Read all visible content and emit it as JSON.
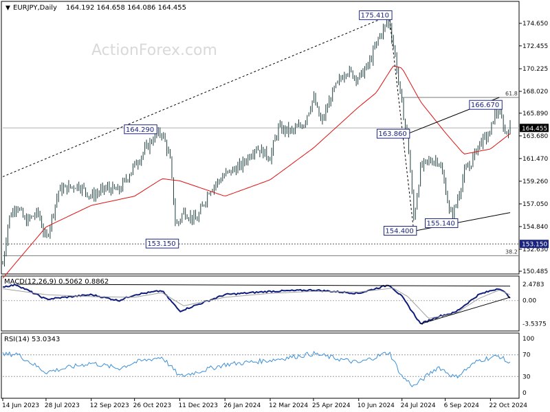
{
  "header": {
    "symbol_timeframe": "EURJPY,Daily",
    "ohlc": "164.192 164.658 164.086 164.455"
  },
  "watermark": "ActionForex.com",
  "colors": {
    "candles": "#1c3c3c",
    "sma": "#e01010",
    "macd": "#0d1c7a",
    "signal": "#a0a0a0",
    "rsi": "#3a8fd8",
    "annotation_text": "#1a237e",
    "current_price_tag": "#000000"
  },
  "chart_data": [
    {
      "type": "candlestick",
      "name": "price",
      "title": "EURJPY,Daily",
      "ylim": [
        150.485,
        176.5
      ],
      "y_ticks": [
        "174.650",
        "172.455",
        "170.225",
        "168.020",
        "165.890",
        "163.680",
        "161.470",
        "159.260",
        "157.050",
        "154.840",
        "152.630",
        "150.485"
      ],
      "x_ticks": [
        "14 Jun 2023",
        "28 Jul 2023",
        "12 Sep 2023",
        "26 Oct 2023",
        "11 Dec 2023",
        "26 Jan 2024",
        "12 Mar 2024",
        "25 Apr 2024",
        "10 Jun 2024",
        "24 Jul 2024",
        "6 Sep 2024",
        "22 Oct 2024"
      ],
      "overlay": "moving average",
      "close_path": [
        {
          "d": "14 Jun 2023",
          "v": 151.2
        },
        {
          "d": "20 Jun 2023",
          "v": 155.6
        },
        {
          "d": "28 Jun 2023",
          "v": 157.0
        },
        {
          "d": "7 Jul 2023",
          "v": 155.3
        },
        {
          "d": "20 Jul 2023",
          "v": 156.2
        },
        {
          "d": "28 Jul 2023",
          "v": 153.5
        },
        {
          "d": "10 Aug 2023",
          "v": 158.4
        },
        {
          "d": "30 Aug 2023",
          "v": 158.9
        },
        {
          "d": "12 Sep 2023",
          "v": 157.8
        },
        {
          "d": "28 Sep 2023",
          "v": 158.6
        },
        {
          "d": "10 Oct 2023",
          "v": 158.3
        },
        {
          "d": "26 Oct 2023",
          "v": 160.8
        },
        {
          "d": "15 Nov 2023",
          "v": 163.6
        },
        {
          "d": "23 Nov 2023",
          "v": 164.0
        },
        {
          "d": "1 Dec 2023",
          "v": 161.5
        },
        {
          "d": "7 Dec 2023",
          "v": 154.8
        },
        {
          "d": "15 Dec 2023",
          "v": 156.3
        },
        {
          "d": "28 Dec 2023",
          "v": 155.4
        },
        {
          "d": "10 Jan 2024",
          "v": 158.4
        },
        {
          "d": "26 Jan 2024",
          "v": 159.9
        },
        {
          "d": "12 Feb 2024",
          "v": 160.8
        },
        {
          "d": "26 Feb 2024",
          "v": 162.6
        },
        {
          "d": "12 Mar 2024",
          "v": 161.6
        },
        {
          "d": "20 Mar 2024",
          "v": 164.4
        },
        {
          "d": "4 Apr 2024",
          "v": 164.1
        },
        {
          "d": "15 Apr 2024",
          "v": 164.9
        },
        {
          "d": "25 Apr 2024",
          "v": 167.4
        },
        {
          "d": "3 May 2024",
          "v": 164.9
        },
        {
          "d": "15 May 2024",
          "v": 168.0
        },
        {
          "d": "28 May 2024",
          "v": 170.1
        },
        {
          "d": "10 Jun 2024",
          "v": 169.3
        },
        {
          "d": "20 Jun 2024",
          "v": 170.6
        },
        {
          "d": "1 Jul 2024",
          "v": 173.4
        },
        {
          "d": "11 Jul 2024",
          "v": 175.0
        },
        {
          "d": "17 Jul 2024",
          "v": 171.5
        },
        {
          "d": "24 Jul 2024",
          "v": 166.5
        },
        {
          "d": "30 Jul 2024",
          "v": 163.4
        },
        {
          "d": "5 Aug 2024",
          "v": 155.6
        },
        {
          "d": "12 Aug 2024",
          "v": 160.6
        },
        {
          "d": "20 Aug 2024",
          "v": 161.2
        },
        {
          "d": "30 Aug 2024",
          "v": 161.4
        },
        {
          "d": "6 Sep 2024",
          "v": 158.8
        },
        {
          "d": "11 Sep 2024",
          "v": 155.8
        },
        {
          "d": "16 Sep 2024",
          "v": 156.6
        },
        {
          "d": "25 Sep 2024",
          "v": 160.0
        },
        {
          "d": "2 Oct 2024",
          "v": 161.0
        },
        {
          "d": "10 Oct 2024",
          "v": 162.9
        },
        {
          "d": "22 Oct 2024",
          "v": 163.9
        },
        {
          "d": "25 Oct 2024",
          "v": 165.6
        },
        {
          "d": "31 Oct 2024",
          "v": 166.1
        },
        {
          "d": "6 Nov 2024",
          "v": 164.0
        },
        {
          "d": "11 Nov 2024",
          "v": 164.455
        }
      ],
      "ma_path": [
        {
          "d": "14 Jun 2023",
          "v": 149.8
        },
        {
          "d": "28 Jul 2023",
          "v": 154.8
        },
        {
          "d": "12 Sep 2023",
          "v": 156.9
        },
        {
          "d": "26 Oct 2023",
          "v": 157.8
        },
        {
          "d": "23 Nov 2023",
          "v": 159.5
        },
        {
          "d": "11 Dec 2023",
          "v": 159.3
        },
        {
          "d": "26 Jan 2024",
          "v": 157.8
        },
        {
          "d": "12 Mar 2024",
          "v": 159.4
        },
        {
          "d": "25 Apr 2024",
          "v": 162.5
        },
        {
          "d": "10 Jun 2024",
          "v": 166.5
        },
        {
          "d": "28 Jun 2024",
          "v": 167.9
        },
        {
          "d": "15 Jul 2024",
          "v": 170.5
        },
        {
          "d": "24 Jul 2024",
          "v": 170.3
        },
        {
          "d": "12 Aug 2024",
          "v": 167.0
        },
        {
          "d": "6 Sep 2024",
          "v": 164.0
        },
        {
          "d": "25 Sep 2024",
          "v": 161.9
        },
        {
          "d": "22 Oct 2024",
          "v": 162.4
        },
        {
          "d": "11 Nov 2024",
          "v": 163.9
        }
      ],
      "horizontal_lines": [
        {
          "label": "153.150",
          "value": 153.15
        },
        {
          "label": "164.455",
          "value": 164.455,
          "role": "current price"
        },
        {
          "label": "61.8",
          "value": 167.43,
          "from": "24 Jul 2024"
        },
        {
          "label": "38.2",
          "value": 152.0
        }
      ],
      "annotations": [
        {
          "label": "175.410",
          "d": "11 Jul 2024",
          "v": 175.41
        },
        {
          "label": "164.290",
          "d": "15 Nov 2023",
          "v": 164.29
        },
        {
          "label": "153.150",
          "d": "7 Dec 2023",
          "v": 153.15
        },
        {
          "label": "163.860",
          "d": "29 Jul 2024",
          "v": 163.86
        },
        {
          "label": "154.400",
          "d": "5 Aug 2024",
          "v": 154.4
        },
        {
          "label": "155.140",
          "d": "16 Sep 2024",
          "v": 155.14
        },
        {
          "label": "166.670",
          "d": "31 Oct 2024",
          "v": 166.67
        }
      ],
      "trendlines": [
        {
          "style": "dashed",
          "from": {
            "d": "14 Jun 2023",
            "v": 159.7
          },
          "to": {
            "d": "11 Jul 2024",
            "v": 175.41
          }
        },
        {
          "style": "dashed",
          "from": {
            "d": "11 Jul 2024",
            "v": 175.41
          },
          "to": {
            "d": "5 Aug 2024",
            "v": 154.4
          }
        },
        {
          "style": "solid",
          "from": {
            "d": "29 Jul 2024",
            "v": 163.86
          },
          "to": {
            "d": "31 Oct 2024",
            "v": 167.43
          }
        },
        {
          "style": "solid",
          "from": {
            "d": "5 Aug 2024",
            "v": 154.4
          },
          "to": {
            "d": "11 Nov 2024",
            "v": 156.2
          }
        }
      ],
      "current_value_label": "164.455"
    },
    {
      "type": "line",
      "name": "macd",
      "title": "MACD(12,26,9) 0.5062 0.8862",
      "ylim": [
        -4.2,
        3.1
      ],
      "y_ticks": [
        "2.4783",
        "0.00",
        "-3.5375"
      ],
      "series": [
        {
          "name": "MACD",
          "values_path": [
            {
              "d": "14 Jun 2023",
              "v": 2.1
            },
            {
              "d": "28 Jun 2023",
              "v": 2.4
            },
            {
              "d": "28 Jul 2023",
              "v": 0.2
            },
            {
              "d": "12 Sep 2023",
              "v": 0.9
            },
            {
              "d": "10 Oct 2023",
              "v": 0.0
            },
            {
              "d": "26 Oct 2023",
              "v": 0.9
            },
            {
              "d": "23 Nov 2023",
              "v": 1.5
            },
            {
              "d": "11 Dec 2023",
              "v": -1.6
            },
            {
              "d": "26 Jan 2024",
              "v": 0.9
            },
            {
              "d": "12 Mar 2024",
              "v": 1.4
            },
            {
              "d": "25 Apr 2024",
              "v": 1.6
            },
            {
              "d": "10 Jun 2024",
              "v": 1.1
            },
            {
              "d": "11 Jul 2024",
              "v": 2.4
            },
            {
              "d": "24 Jul 2024",
              "v": 0.6
            },
            {
              "d": "12 Aug 2024",
              "v": -3.5375
            },
            {
              "d": "30 Aug 2024",
              "v": -2.4
            },
            {
              "d": "16 Sep 2024",
              "v": -1.8
            },
            {
              "d": "10 Oct 2024",
              "v": 0.9
            },
            {
              "d": "31 Oct 2024",
              "v": 1.9
            },
            {
              "d": "11 Nov 2024",
              "v": 0.5062
            }
          ]
        },
        {
          "name": "Signal",
          "values_path": [
            {
              "d": "14 Jun 2023",
              "v": 1.8
            },
            {
              "d": "28 Jul 2023",
              "v": 0.9
            },
            {
              "d": "12 Sep 2023",
              "v": 0.6
            },
            {
              "d": "26 Oct 2023",
              "v": 0.5
            },
            {
              "d": "23 Nov 2023",
              "v": 1.2
            },
            {
              "d": "15 Dec 2023",
              "v": -0.8
            },
            {
              "d": "26 Jan 2024",
              "v": 0.5
            },
            {
              "d": "12 Mar 2024",
              "v": 1.1
            },
            {
              "d": "25 Apr 2024",
              "v": 1.4
            },
            {
              "d": "10 Jun 2024",
              "v": 1.3
            },
            {
              "d": "15 Jul 2024",
              "v": 1.9
            },
            {
              "d": "30 Jul 2024",
              "v": 0.6
            },
            {
              "d": "20 Aug 2024",
              "v": -2.7
            },
            {
              "d": "16 Sep 2024",
              "v": -2.0
            },
            {
              "d": "10 Oct 2024",
              "v": 0.3
            },
            {
              "d": "31 Oct 2024",
              "v": 1.6
            },
            {
              "d": "11 Nov 2024",
              "v": 0.8862
            }
          ]
        }
      ],
      "trendlines": [
        {
          "from": {
            "d": "28 Jun 2023",
            "v": 2.48
          },
          "to": {
            "d": "11 Nov 2024",
            "v": 2.2
          }
        },
        {
          "from": {
            "d": "12 Aug 2024",
            "v": -3.54
          },
          "to": {
            "d": "11 Nov 2024",
            "v": 0.5
          }
        }
      ]
    },
    {
      "type": "line",
      "name": "rsi",
      "title": "RSI(14) 53.0343",
      "ylim": [
        0,
        100
      ],
      "y_ticks": [
        "100",
        "70",
        "30",
        "0"
      ],
      "levels": [
        70,
        30
      ],
      "series": [
        {
          "name": "RSI",
          "values_path": [
            {
              "d": "14 Jun 2023",
              "v": 70
            },
            {
              "d": "28 Jun 2023",
              "v": 72
            },
            {
              "d": "28 Jul 2023",
              "v": 38
            },
            {
              "d": "12 Sep 2023",
              "v": 55
            },
            {
              "d": "10 Oct 2023",
              "v": 45
            },
            {
              "d": "26 Oct 2023",
              "v": 56
            },
            {
              "d": "23 Nov 2023",
              "v": 66
            },
            {
              "d": "11 Dec 2023",
              "v": 30
            },
            {
              "d": "26 Jan 2024",
              "v": 52
            },
            {
              "d": "12 Mar 2024",
              "v": 60
            },
            {
              "d": "25 Apr 2024",
              "v": 72
            },
            {
              "d": "10 Jun 2024",
              "v": 55
            },
            {
              "d": "11 Jul 2024",
              "v": 75
            },
            {
              "d": "24 Jul 2024",
              "v": 30
            },
            {
              "d": "5 Aug 2024",
              "v": 12
            },
            {
              "d": "30 Aug 2024",
              "v": 48
            },
            {
              "d": "16 Sep 2024",
              "v": 28
            },
            {
              "d": "10 Oct 2024",
              "v": 60
            },
            {
              "d": "31 Oct 2024",
              "v": 68
            },
            {
              "d": "11 Nov 2024",
              "v": 53.0343
            }
          ]
        }
      ]
    }
  ]
}
